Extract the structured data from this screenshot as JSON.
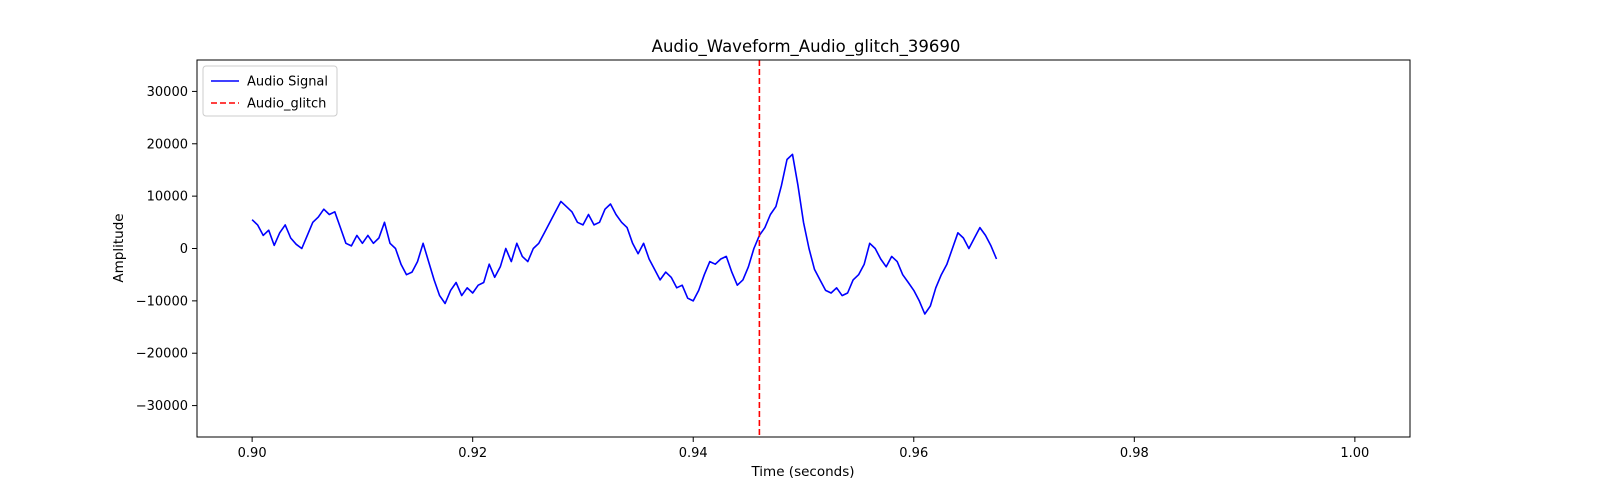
{
  "chart_data": {
    "type": "line",
    "title": "Audio_Waveform_Audio_glitch_39690",
    "xlabel": "Time (seconds)",
    "ylabel": "Amplitude",
    "xlim": [
      0.895,
      1.005
    ],
    "ylim": [
      -36000,
      36000
    ],
    "x_ticks": [
      0.9,
      0.92,
      0.94,
      0.96,
      0.98,
      1.0
    ],
    "x_tick_labels": [
      "0.90",
      "0.92",
      "0.94",
      "0.96",
      "0.98",
      "1.00"
    ],
    "y_ticks": [
      -30000,
      -20000,
      -10000,
      0,
      10000,
      20000,
      30000
    ],
    "y_tick_labels": [
      "−30000",
      "−20000",
      "−10000",
      "0",
      "10000",
      "20000",
      "30000"
    ],
    "grid": false,
    "legend_position": "upper-left",
    "series": [
      {
        "name": "Audio Signal",
        "color": "#0000ff",
        "style": "solid",
        "points": [
          [
            0.9,
            5500
          ],
          [
            0.9005,
            4500
          ],
          [
            0.901,
            2500
          ],
          [
            0.9015,
            3500
          ],
          [
            0.902,
            600
          ],
          [
            0.9025,
            3000
          ],
          [
            0.903,
            4500
          ],
          [
            0.9035,
            2000
          ],
          [
            0.904,
            800
          ],
          [
            0.9045,
            0
          ],
          [
            0.905,
            2500
          ],
          [
            0.9055,
            5000
          ],
          [
            0.906,
            6000
          ],
          [
            0.9065,
            7500
          ],
          [
            0.907,
            6500
          ],
          [
            0.9075,
            7000
          ],
          [
            0.908,
            4000
          ],
          [
            0.9085,
            1000
          ],
          [
            0.909,
            500
          ],
          [
            0.9095,
            2500
          ],
          [
            0.91,
            1000
          ],
          [
            0.9105,
            2500
          ],
          [
            0.911,
            1000
          ],
          [
            0.9115,
            2000
          ],
          [
            0.912,
            5000
          ],
          [
            0.9125,
            1000
          ],
          [
            0.913,
            0
          ],
          [
            0.9135,
            -3000
          ],
          [
            0.914,
            -5000
          ],
          [
            0.9145,
            -4500
          ],
          [
            0.915,
            -2500
          ],
          [
            0.9155,
            1000
          ],
          [
            0.916,
            -2500
          ],
          [
            0.9165,
            -6000
          ],
          [
            0.917,
            -9000
          ],
          [
            0.9175,
            -10500
          ],
          [
            0.918,
            -8000
          ],
          [
            0.9185,
            -6500
          ],
          [
            0.919,
            -9000
          ],
          [
            0.9195,
            -7500
          ],
          [
            0.92,
            -8500
          ],
          [
            0.9205,
            -7000
          ],
          [
            0.921,
            -6500
          ],
          [
            0.9215,
            -3000
          ],
          [
            0.922,
            -5500
          ],
          [
            0.9225,
            -3500
          ],
          [
            0.923,
            0
          ],
          [
            0.9235,
            -2500
          ],
          [
            0.924,
            1000
          ],
          [
            0.9245,
            -1500
          ],
          [
            0.925,
            -2500
          ],
          [
            0.9255,
            0
          ],
          [
            0.926,
            1000
          ],
          [
            0.9265,
            3000
          ],
          [
            0.927,
            5000
          ],
          [
            0.9275,
            7000
          ],
          [
            0.928,
            9000
          ],
          [
            0.9285,
            8000
          ],
          [
            0.929,
            7000
          ],
          [
            0.9295,
            5000
          ],
          [
            0.93,
            4500
          ],
          [
            0.9305,
            6500
          ],
          [
            0.931,
            4500
          ],
          [
            0.9315,
            5000
          ],
          [
            0.932,
            7500
          ],
          [
            0.9325,
            8500
          ],
          [
            0.933,
            6500
          ],
          [
            0.9335,
            5000
          ],
          [
            0.934,
            4000
          ],
          [
            0.9345,
            1000
          ],
          [
            0.935,
            -1000
          ],
          [
            0.9355,
            1000
          ],
          [
            0.936,
            -2000
          ],
          [
            0.9365,
            -4000
          ],
          [
            0.937,
            -6000
          ],
          [
            0.9375,
            -4500
          ],
          [
            0.938,
            -5500
          ],
          [
            0.9385,
            -7500
          ],
          [
            0.939,
            -7000
          ],
          [
            0.9395,
            -9500
          ],
          [
            0.94,
            -10000
          ],
          [
            0.9405,
            -8000
          ],
          [
            0.941,
            -5000
          ],
          [
            0.9415,
            -2500
          ],
          [
            0.942,
            -3000
          ],
          [
            0.9425,
            -2000
          ],
          [
            0.943,
            -1500
          ],
          [
            0.9435,
            -4500
          ],
          [
            0.944,
            -7000
          ],
          [
            0.9445,
            -6000
          ],
          [
            0.945,
            -3500
          ],
          [
            0.9455,
            0
          ],
          [
            0.946,
            2500
          ],
          [
            0.9465,
            4000
          ],
          [
            0.947,
            6500
          ],
          [
            0.9475,
            8000
          ],
          [
            0.948,
            12000
          ],
          [
            0.9485,
            17000
          ],
          [
            0.949,
            18000
          ],
          [
            0.9495,
            12000
          ],
          [
            0.95,
            5000
          ],
          [
            0.9505,
            0
          ],
          [
            0.951,
            -4000
          ],
          [
            0.9515,
            -6000
          ],
          [
            0.952,
            -8000
          ],
          [
            0.9525,
            -8500
          ],
          [
            0.953,
            -7500
          ],
          [
            0.9535,
            -9000
          ],
          [
            0.954,
            -8500
          ],
          [
            0.9545,
            -6000
          ],
          [
            0.955,
            -5000
          ],
          [
            0.9555,
            -3000
          ],
          [
            0.956,
            1000
          ],
          [
            0.9565,
            0
          ],
          [
            0.957,
            -2000
          ],
          [
            0.9575,
            -3500
          ],
          [
            0.958,
            -1500
          ],
          [
            0.9585,
            -2500
          ],
          [
            0.959,
            -5000
          ],
          [
            0.9595,
            -6500
          ],
          [
            0.96,
            -8000
          ],
          [
            0.9605,
            -10000
          ],
          [
            0.961,
            -12500
          ],
          [
            0.9615,
            -11000
          ],
          [
            0.962,
            -7500
          ],
          [
            0.9625,
            -5000
          ],
          [
            0.963,
            -3000
          ],
          [
            0.9635,
            0
          ],
          [
            0.964,
            3000
          ],
          [
            0.9645,
            2000
          ],
          [
            0.965,
            0
          ],
          [
            0.9655,
            2000
          ],
          [
            0.966,
            4000
          ],
          [
            0.9665,
            2500
          ],
          [
            0.967,
            500
          ],
          [
            0.9675,
            -2000
          ]
        ]
      },
      {
        "name": "Audio_glitch",
        "color": "#ff0000",
        "style": "dashed",
        "x": 0.946
      }
    ]
  }
}
